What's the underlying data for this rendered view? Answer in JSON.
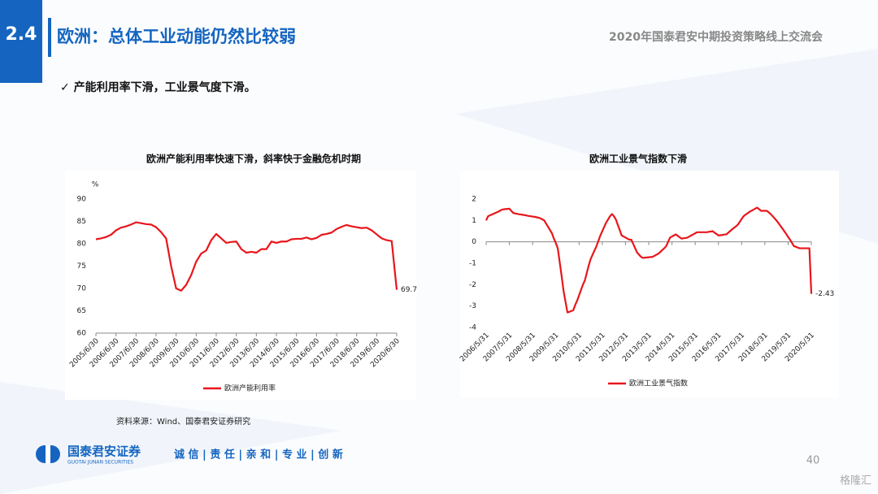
{
  "header": {
    "section": "2.4",
    "title": "欧洲：总体工业动能仍然比较弱",
    "event": "2020年国泰君安中期投资策略线上交流会"
  },
  "bullet": "✓ 产能利用率下滑，工业景气度下滑。",
  "source": "资料来源：Wind、国泰君安证券研究",
  "footer": {
    "company": "国泰君安证券",
    "company_en": "GUOTAI JUNAN SECURITIES",
    "slogan": "诚 信 | 责 任 | 亲 和 | 专 业 | 创 新",
    "page": "40",
    "watermark": "格隆汇"
  },
  "chart_data": [
    {
      "type": "line",
      "title": "欧洲产能利用率快速下滑，斜率快于金融危机时期",
      "y_label": "%",
      "categories": [
        "2005/6/30",
        null,
        null,
        null,
        "2006/6/30",
        null,
        null,
        null,
        "2007/6/30",
        null,
        null,
        null,
        "2008/6/30",
        null,
        null,
        null,
        "2009/6/30",
        null,
        null,
        null,
        "2010/6/30",
        null,
        null,
        null,
        "2011/6/30",
        null,
        null,
        null,
        "2012/6/30",
        null,
        null,
        null,
        "2013/6/30",
        null,
        null,
        null,
        "2014/6/30",
        null,
        null,
        null,
        "2015/6/30",
        null,
        null,
        null,
        "2016/6/30",
        null,
        null,
        null,
        "2017/6/30",
        null,
        null,
        null,
        "2018/6/30",
        null,
        null,
        null,
        "2019/6/30",
        null,
        null,
        null,
        "2020/6/30"
      ],
      "series": [
        {
          "name": "欧洲产能利用率",
          "color": "#e8161b",
          "values": [
            81.0,
            81.2,
            81.5,
            82.0,
            83.0,
            83.6,
            83.9,
            84.3,
            84.8,
            84.6,
            84.4,
            84.3,
            83.7,
            82.6,
            81.2,
            75.0,
            70.0,
            69.5,
            70.8,
            73.0,
            76.0,
            77.8,
            78.5,
            80.8,
            82.2,
            81.2,
            80.2,
            80.4,
            80.5,
            78.8,
            78.0,
            78.2,
            78.0,
            78.8,
            78.8,
            80.5,
            80.2,
            80.5,
            80.5,
            81.0,
            81.1,
            81.1,
            81.4,
            81.0,
            81.3,
            82.0,
            82.2,
            82.5,
            83.3,
            83.8,
            84.2,
            83.9,
            83.7,
            83.5,
            83.6,
            83.0,
            82.1,
            81.2,
            80.8,
            80.6,
            69.7
          ]
        }
      ],
      "ylim": [
        60,
        90
      ],
      "yticks": [
        60,
        65,
        70,
        75,
        80,
        85,
        90
      ]
    },
    {
      "type": "line",
      "title": "欧洲工业景气指数下滑",
      "categories": [
        "2006/5/31",
        null,
        null,
        null,
        null,
        null,
        null,
        null,
        null,
        null,
        null,
        null,
        "2007/5/31",
        null,
        null,
        null,
        null,
        null,
        null,
        null,
        null,
        null,
        null,
        null,
        "2008/5/31",
        null,
        null,
        null,
        null,
        null,
        null,
        null,
        null,
        null,
        null,
        null,
        "2009/5/31",
        null,
        null,
        null,
        null,
        null,
        null,
        null,
        null,
        null,
        null,
        null,
        "2010/5/31",
        null,
        null,
        null,
        null,
        null,
        null,
        null,
        null,
        null,
        null,
        null,
        "2011/5/31",
        null,
        null,
        null,
        null,
        null,
        null,
        null,
        null,
        null,
        null,
        null,
        "2012/5/31",
        null,
        null,
        null,
        null,
        null,
        null,
        null,
        null,
        null,
        null,
        null,
        "2013/5/31",
        null,
        null,
        null,
        null,
        null,
        null,
        null,
        null,
        null,
        null,
        null,
        "2014/5/31",
        null,
        null,
        null,
        null,
        null,
        null,
        null,
        null,
        null,
        null,
        null,
        "2015/5/31",
        null,
        null,
        null,
        null,
        null,
        null,
        null,
        null,
        null,
        null,
        null,
        "2016/5/31",
        null,
        null,
        null,
        null,
        null,
        null,
        null,
        null,
        null,
        null,
        null,
        "2017/5/31",
        null,
        null,
        null,
        null,
        null,
        null,
        null,
        null,
        null,
        null,
        null,
        "2018/5/31",
        null,
        null,
        null,
        null,
        null,
        null,
        null,
        null,
        null,
        null,
        null,
        "2019/5/31",
        null,
        null,
        null,
        null,
        null,
        null,
        null,
        null,
        null,
        null,
        null,
        "2020/5/31"
      ],
      "series": [
        {
          "name": "欧洲工业景气指数",
          "color": "#e8161b",
          "values": [
            1.0,
            1.2,
            1.24,
            1.28,
            1.32,
            1.36,
            1.4,
            1.45,
            1.5,
            1.52,
            1.53,
            1.54,
            1.55,
            1.45,
            1.35,
            1.33,
            1.31,
            1.29,
            1.28,
            1.26,
            1.25,
            1.23,
            1.21,
            1.2,
            1.18,
            1.17,
            1.15,
            1.13,
            1.1,
            1.05,
            1.0,
            0.85,
            0.7,
            0.55,
            0.4,
            0.15,
            -0.05,
            -0.3,
            -0.95,
            -1.6,
            -2.3,
            -2.8,
            -3.3,
            -3.27,
            -3.23,
            -3.2,
            -2.95,
            -2.75,
            -2.5,
            -2.25,
            -2.0,
            -1.8,
            -1.45,
            -1.1,
            -0.8,
            -0.6,
            -0.4,
            -0.2,
            0.05,
            0.3,
            0.5,
            0.7,
            0.9,
            1.05,
            1.2,
            1.3,
            1.2,
            1.05,
            0.8,
            0.55,
            0.3,
            0.25,
            0.2,
            0.15,
            0.1,
            0.1,
            -0.1,
            -0.3,
            -0.5,
            -0.6,
            -0.7,
            -0.75,
            -0.74,
            -0.73,
            -0.72,
            -0.71,
            -0.7,
            -0.65,
            -0.6,
            -0.55,
            -0.47,
            -0.38,
            -0.3,
            -0.2,
            0.0,
            0.2,
            0.25,
            0.3,
            0.35,
            0.28,
            0.21,
            0.15,
            0.17,
            0.18,
            0.2,
            0.25,
            0.3,
            0.35,
            0.4,
            0.45,
            0.45,
            0.45,
            0.45,
            0.45,
            0.45,
            0.47,
            0.48,
            0.5,
            0.43,
            0.37,
            0.3,
            0.31,
            0.32,
            0.34,
            0.35,
            0.42,
            0.5,
            0.58,
            0.65,
            0.72,
            0.8,
            0.93,
            1.07,
            1.2,
            1.27,
            1.33,
            1.4,
            1.45,
            1.5,
            1.55,
            1.6,
            1.53,
            1.45,
            1.45,
            1.45,
            1.45,
            1.38,
            1.3,
            1.2,
            1.1,
            1.0,
            0.88,
            0.75,
            0.63,
            0.5,
            0.37,
            0.23,
            0.1,
            -0.05,
            -0.2,
            -0.23,
            -0.27,
            -0.3,
            -0.3,
            -0.3,
            -0.3,
            -0.3,
            -0.3,
            -2.43
          ]
        }
      ],
      "ylim": [
        -4,
        2
      ],
      "yticks": [
        -4,
        -3,
        -2,
        -1,
        0,
        1,
        2
      ]
    }
  ]
}
